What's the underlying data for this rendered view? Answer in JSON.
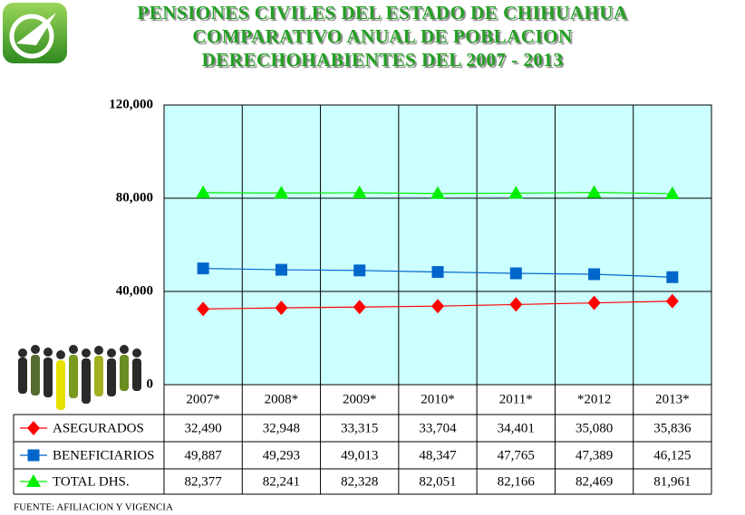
{
  "chart_data": {
    "type": "line",
    "title": [
      "PENSIONES CIVILES DEL ESTADO DE CHIHUAHUA",
      "COMPARATIVO ANUAL DE POBLACION",
      "DERECHOHABIENTES DEL  2007 - 2013"
    ],
    "categories": [
      "2007*",
      "2008*",
      "2009*",
      "2010*",
      "2011*",
      "*2012",
      "2013*"
    ],
    "series": [
      {
        "name": "ASEGURADOS",
        "color": "#ff0000",
        "marker": "diamond",
        "values": [
          32490,
          32948,
          33315,
          33704,
          34401,
          35080,
          35836
        ],
        "value_labels": [
          "32,490",
          "32,948",
          "33,315",
          "33,704",
          "34,401",
          "35,080",
          "35,836"
        ]
      },
      {
        "name": "BENEFICIARIOS",
        "color": "#0066cc",
        "marker": "square",
        "values": [
          49887,
          49293,
          49013,
          48347,
          47765,
          47389,
          46125
        ],
        "value_labels": [
          "49,887",
          "49,293",
          "49,013",
          "48,347",
          "47,765",
          "47,389",
          "46,125"
        ]
      },
      {
        "name": "TOTAL DHS.",
        "color": "#00ee00",
        "marker": "triangle",
        "values": [
          82377,
          82241,
          82328,
          82051,
          82166,
          82469,
          81961
        ],
        "value_labels": [
          "82,377",
          "82,241",
          "82,328",
          "82,051",
          "82,166",
          "82,469",
          "81,961"
        ]
      }
    ],
    "ylim": [
      0,
      120000
    ],
    "yticks": [
      0,
      {
        "value": 40000,
        "label": "40,000"
      },
      {
        "value": 80000,
        "label": "80,000"
      },
      {
        "value": 120000,
        "label": "120,000"
      }
    ],
    "grid": true,
    "source": "FUENTE: AFILIACION Y VIGENCIA"
  }
}
